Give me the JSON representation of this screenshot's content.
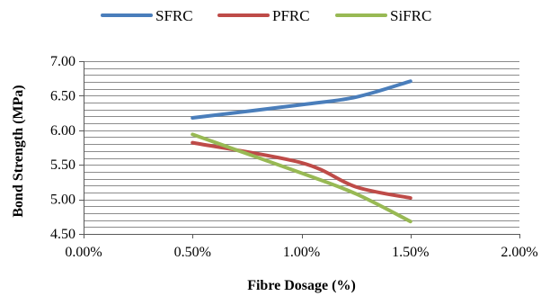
{
  "chart_data": {
    "type": "line",
    "title": "",
    "xlabel": "Fibre Dosage (%)",
    "ylabel": "Bond Strength (MPa)",
    "xlim": [
      0,
      2
    ],
    "ylim": [
      4.5,
      7.0
    ],
    "x_major_ticks": [
      0,
      0.5,
      1.0,
      1.5,
      2.0
    ],
    "x_tick_labels": [
      "0.00%",
      "0.50%",
      "1.00%",
      "1.50%",
      "2.00%"
    ],
    "y_major_ticks": [
      4.5,
      5.0,
      5.5,
      6.0,
      6.5,
      7.0
    ],
    "y_tick_labels": [
      "4.50",
      "5.00",
      "5.50",
      "6.00",
      "6.50",
      "7.00"
    ],
    "y_minor_step": 0.1,
    "grid": true,
    "smooth": true,
    "legend_position": "top",
    "series": [
      {
        "name": "SFRC",
        "color": "#4a7ebb",
        "x": [
          0.5,
          1.0,
          1.25,
          1.5
        ],
        "values": [
          6.18,
          6.37,
          6.48,
          6.71
        ]
      },
      {
        "name": "PFRC",
        "color": "#be4b48",
        "x": [
          0.5,
          1.0,
          1.25,
          1.5
        ],
        "values": [
          5.82,
          5.53,
          5.18,
          5.02
        ]
      },
      {
        "name": "SiFRC",
        "color": "#98b954",
        "x": [
          0.5,
          1.0,
          1.25,
          1.5
        ],
        "values": [
          5.94,
          5.38,
          5.08,
          4.68
        ]
      }
    ]
  }
}
